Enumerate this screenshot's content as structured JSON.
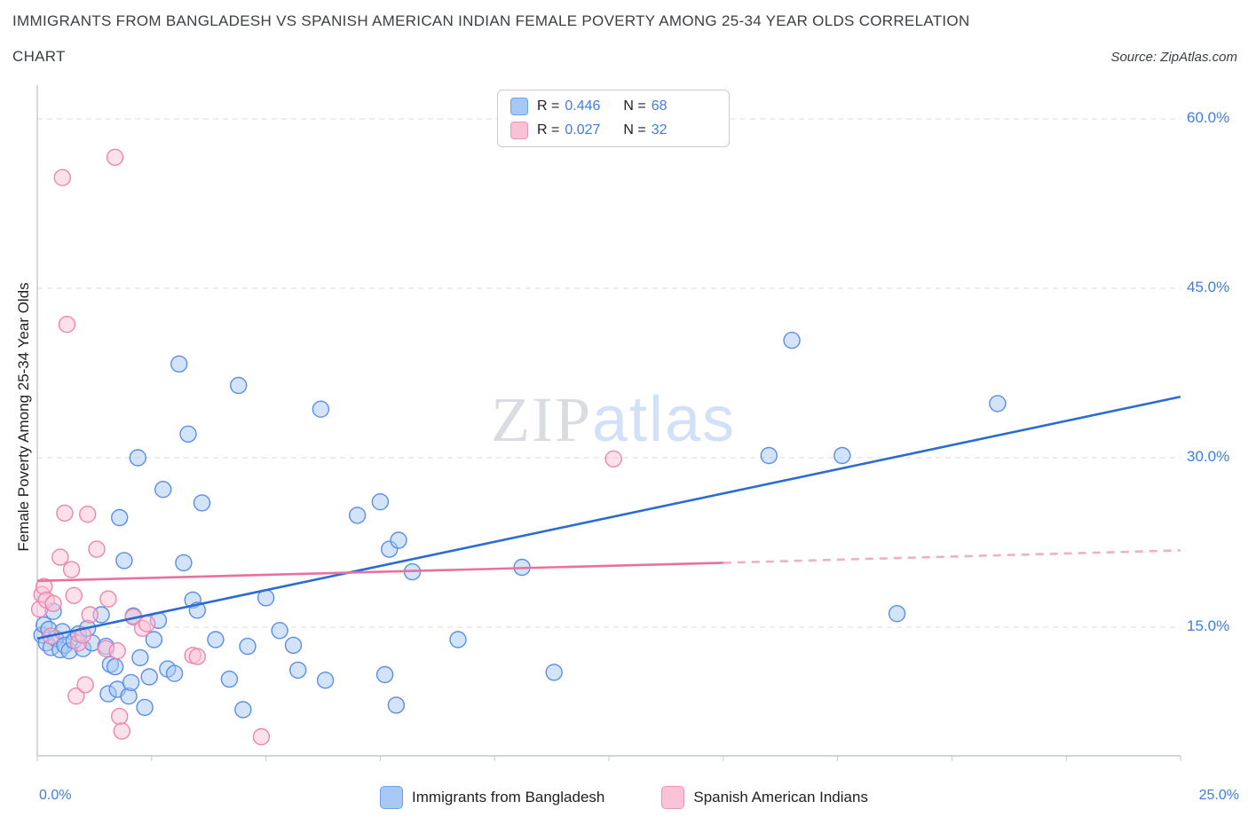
{
  "header": {
    "title_line1": "IMMIGRANTS FROM BANGLADESH VS SPANISH AMERICAN INDIAN FEMALE POVERTY AMONG 25-34 YEAR OLDS CORRELATION",
    "title_line2": "CHART",
    "source": "Source: ZipAtlas.com"
  },
  "watermark": {
    "zip": "ZIP",
    "atlas": "atlas"
  },
  "legend_box": {
    "rows": [
      {
        "r_label": "R =",
        "r_value": "0.446",
        "n_label": "N =",
        "n_value": "68",
        "swatch_fill": "#a7c7f4",
        "swatch_border": "#6fa0ea"
      },
      {
        "r_label": "R =",
        "r_value": "0.027",
        "n_label": "N =",
        "n_value": "32",
        "swatch_fill": "#f9c2d6",
        "swatch_border": "#ee93b8"
      }
    ]
  },
  "axes": {
    "y_label": "Female Poverty Among 25-34 Year Olds",
    "y_ticks": [
      "60.0%",
      "45.0%",
      "30.0%",
      "15.0%"
    ],
    "x_tick_left": "0.0%",
    "x_tick_right": "25.0%"
  },
  "bottom_legend": [
    {
      "label": "Immigrants from Bangladesh",
      "swatch_fill": "#a7c7f4",
      "swatch_border": "#6fa0ea"
    },
    {
      "label": "Spanish American Indians",
      "swatch_fill": "#f9c2d6",
      "swatch_border": "#ee93b8"
    }
  ],
  "chart_data": {
    "type": "scatter",
    "title": "Immigrants from Bangladesh vs Spanish American Indian Female Poverty Among 25-34 Year Olds Correlation Chart",
    "ylabel": "Female Poverty Among 25-34 Year Olds",
    "xlim": [
      0,
      25
    ],
    "ylim": [
      3.6,
      62
    ],
    "x_tick_interval": 2.5,
    "y_gridlines": [
      15,
      30,
      45,
      60
    ],
    "grid": true,
    "legend_position": "top-center",
    "series": [
      {
        "name": "Immigrants from Bangladesh",
        "short": "bangladesh",
        "R": 0.446,
        "N": 68,
        "color": "#5a8ee8",
        "fill": "#a7c7f4",
        "points": [
          [
            0.1,
            14.3
          ],
          [
            0.15,
            15.2
          ],
          [
            0.2,
            13.6
          ],
          [
            0.25,
            14.8
          ],
          [
            0.3,
            13.2
          ],
          [
            0.35,
            16.4
          ],
          [
            0.4,
            14.0
          ],
          [
            0.5,
            13.0
          ],
          [
            0.55,
            14.6
          ],
          [
            0.6,
            13.4
          ],
          [
            0.7,
            12.9
          ],
          [
            0.8,
            13.8
          ],
          [
            0.9,
            14.4
          ],
          [
            1.0,
            13.1
          ],
          [
            1.1,
            14.9
          ],
          [
            1.2,
            13.6
          ],
          [
            1.4,
            16.1
          ],
          [
            1.5,
            13.3
          ],
          [
            1.55,
            9.1
          ],
          [
            1.6,
            11.7
          ],
          [
            1.7,
            11.5
          ],
          [
            1.75,
            9.5
          ],
          [
            1.8,
            24.7
          ],
          [
            1.9,
            20.9
          ],
          [
            2.0,
            8.9
          ],
          [
            2.05,
            10.1
          ],
          [
            2.1,
            16.0
          ],
          [
            2.2,
            30.0
          ],
          [
            2.25,
            12.3
          ],
          [
            2.35,
            7.9
          ],
          [
            2.45,
            10.6
          ],
          [
            2.55,
            13.9
          ],
          [
            2.65,
            15.6
          ],
          [
            2.75,
            27.2
          ],
          [
            2.85,
            11.3
          ],
          [
            3.0,
            10.9
          ],
          [
            3.1,
            38.3
          ],
          [
            3.2,
            20.7
          ],
          [
            3.3,
            32.1
          ],
          [
            3.4,
            17.4
          ],
          [
            3.5,
            16.5
          ],
          [
            3.6,
            26.0
          ],
          [
            3.9,
            13.9
          ],
          [
            4.2,
            10.4
          ],
          [
            4.4,
            36.4
          ],
          [
            4.5,
            7.7
          ],
          [
            4.6,
            13.3
          ],
          [
            5.0,
            17.6
          ],
          [
            5.3,
            14.7
          ],
          [
            5.6,
            13.4
          ],
          [
            5.7,
            11.2
          ],
          [
            6.2,
            34.3
          ],
          [
            6.3,
            10.3
          ],
          [
            7.0,
            24.9
          ],
          [
            7.5,
            26.1
          ],
          [
            7.6,
            10.8
          ],
          [
            7.7,
            21.9
          ],
          [
            7.85,
            8.1
          ],
          [
            7.9,
            22.7
          ],
          [
            8.2,
            19.9
          ],
          [
            9.2,
            13.9
          ],
          [
            10.6,
            20.3
          ],
          [
            11.3,
            11.0
          ],
          [
            16.0,
            30.2
          ],
          [
            16.5,
            40.4
          ],
          [
            17.6,
            30.2
          ],
          [
            18.8,
            16.2
          ],
          [
            21.0,
            34.8
          ]
        ]
      },
      {
        "name": "Spanish American Indians",
        "short": "spanish-american-indians",
        "R": 0.027,
        "N": 32,
        "color": "#ee85ad",
        "fill": "#f9c2d6",
        "points": [
          [
            0.05,
            16.6
          ],
          [
            0.1,
            17.9
          ],
          [
            0.15,
            18.6
          ],
          [
            0.2,
            17.4
          ],
          [
            0.3,
            14.2
          ],
          [
            0.35,
            17.1
          ],
          [
            0.5,
            21.2
          ],
          [
            0.55,
            54.8
          ],
          [
            0.6,
            25.1
          ],
          [
            0.65,
            41.8
          ],
          [
            0.75,
            20.1
          ],
          [
            0.8,
            17.8
          ],
          [
            0.85,
            8.9
          ],
          [
            0.9,
            13.6
          ],
          [
            1.0,
            14.3
          ],
          [
            1.05,
            9.9
          ],
          [
            1.1,
            25.0
          ],
          [
            1.15,
            16.1
          ],
          [
            1.3,
            21.9
          ],
          [
            1.5,
            13.1
          ],
          [
            1.55,
            17.5
          ],
          [
            1.7,
            56.6
          ],
          [
            1.75,
            12.9
          ],
          [
            1.8,
            7.1
          ],
          [
            1.85,
            5.8
          ],
          [
            2.1,
            15.9
          ],
          [
            2.3,
            14.9
          ],
          [
            2.4,
            15.3
          ],
          [
            3.4,
            12.5
          ],
          [
            3.5,
            12.4
          ],
          [
            4.9,
            5.3
          ],
          [
            12.6,
            29.9
          ]
        ]
      }
    ],
    "trend_lines": [
      {
        "short": "bangladesh",
        "color": "#2a6bd4",
        "segments": [
          {
            "x": [
              0,
              25
            ],
            "y": [
              14.0,
              35.4
            ],
            "dashed": false
          }
        ]
      },
      {
        "short": "spanish-american-indians",
        "color": "#e8719f",
        "segments": [
          {
            "x": [
              0,
              15
            ],
            "y": [
              19.1,
              20.7
            ],
            "dashed": false
          },
          {
            "x": [
              15,
              25
            ],
            "y": [
              20.7,
              21.8
            ],
            "dashed": true,
            "color": "#f2aec5"
          }
        ]
      }
    ]
  }
}
